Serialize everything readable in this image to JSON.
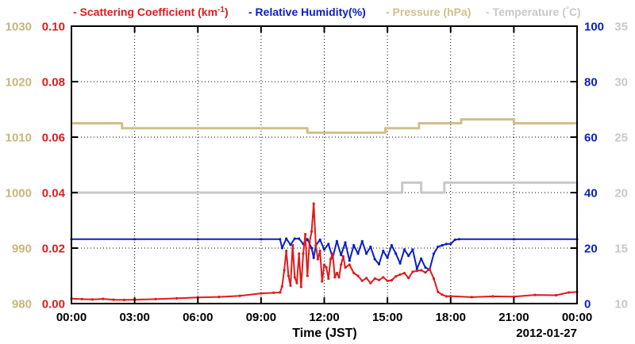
{
  "chart_data": {
    "type": "line",
    "legend": {
      "placement": "top",
      "items": [
        {
          "prefix": "- ",
          "text": "Scattering Coefficient (km",
          "sup": "-1",
          "close": ")",
          "color": "#e01b1b"
        },
        {
          "text": "- Relative Humidity(%)",
          "color": "#0b1fc6"
        },
        {
          "text": "- Pressure (hPa)",
          "color": "#cfc08a"
        },
        {
          "text": "- Temperature (",
          "sup": "°",
          "close": "C)",
          "color": "#c8c8c8"
        }
      ]
    },
    "xlabel": "Time (JST)",
    "date_label": "2012-01-27",
    "x_range_hours": [
      0,
      24
    ],
    "x_ticks": [
      "00:00",
      "03:00",
      "06:00",
      "09:00",
      "12:00",
      "15:00",
      "18:00",
      "21:00",
      "00:00"
    ],
    "grid": true,
    "axes": {
      "pressure": {
        "side": "left-outer",
        "color": "#c5b77c",
        "range": [
          980,
          1030
        ],
        "ticks": [
          "980",
          "990",
          "1000",
          "1010",
          "1020",
          "1030"
        ]
      },
      "scattering": {
        "side": "left-inner",
        "color": "#e01b1b",
        "range": [
          0,
          0.1
        ],
        "ticks": [
          "0.00",
          "0.02",
          "0.04",
          "0.06",
          "0.08",
          "0.10"
        ]
      },
      "humidity": {
        "side": "right-inner",
        "color": "#0b1fc6",
        "range": [
          0,
          100
        ],
        "ticks": [
          "0",
          "20",
          "40",
          "60",
          "80",
          "100"
        ]
      },
      "temperature": {
        "side": "right-outer",
        "color": "#c8c8c8",
        "range": [
          10,
          35
        ],
        "ticks": [
          "10",
          "15",
          "20",
          "25",
          "30",
          "35"
        ]
      }
    },
    "series": [
      {
        "name": "Pressure (hPa)",
        "axis": "pressure",
        "color": "#cfc08a",
        "step": true,
        "x": [
          0,
          2.4,
          5.5,
          9.0,
          10.2,
          11.2,
          14.9,
          16.5,
          17.8,
          18.5,
          20.0,
          21.0,
          23.0,
          24
        ],
        "y": [
          1012.5,
          1011.6,
          1011.6,
          1011.6,
          1011.6,
          1010.8,
          1011.6,
          1012.5,
          1012.5,
          1013.2,
          1013.2,
          1012.5,
          1012.5,
          1012.5
        ]
      },
      {
        "name": "Temperature (°C)",
        "axis": "temperature",
        "color": "#c8c8c8",
        "step": true,
        "x": [
          0,
          15.6,
          15.7,
          16.6,
          17.7,
          18.0,
          21.0,
          23.9,
          24
        ],
        "y": [
          20,
          20,
          20.9,
          20,
          20.9,
          20.9,
          20.9,
          20.9,
          20
        ]
      },
      {
        "name": "Relative Humidity(%)",
        "axis": "humidity",
        "color": "#0b1fc6",
        "step": false,
        "x": [
          0,
          3,
          6,
          9,
          9.9,
          10.0,
          10.2,
          10.4,
          10.6,
          10.8,
          11.0,
          11.2,
          11.4,
          11.5,
          11.6,
          11.8,
          12.0,
          12.2,
          12.4,
          12.6,
          12.8,
          13.0,
          13.2,
          13.4,
          13.6,
          13.8,
          14.0,
          14.2,
          14.4,
          14.6,
          14.8,
          15.0,
          15.2,
          15.4,
          15.6,
          15.8,
          16.0,
          16.2,
          16.4,
          16.6,
          16.8,
          17.0,
          17.2,
          17.4,
          17.6,
          17.8,
          18.0,
          18.2,
          18.4,
          21,
          24
        ],
        "y": [
          23.2,
          23.2,
          23.2,
          23.2,
          23.2,
          20.0,
          23.4,
          21.2,
          23.4,
          23.4,
          21.5,
          23.2,
          20.0,
          16.5,
          21.0,
          23.0,
          19.5,
          21.5,
          16.5,
          22.5,
          17.5,
          22.0,
          15.5,
          21.0,
          18.0,
          22.5,
          18.0,
          20.5,
          16.0,
          14.2,
          19.0,
          16.5,
          21.0,
          18.0,
          14.5,
          19.5,
          17.2,
          19.5,
          12.5,
          16.2,
          13.0,
          12.2,
          18.0,
          20.5,
          21.0,
          21.5,
          21.5,
          23.0,
          23.2,
          23.2,
          23.2
        ]
      },
      {
        "name": "Scattering Coefficient (km-1)",
        "axis": "scattering",
        "color": "#e01b1b",
        "step": false,
        "x": [
          0,
          0.5,
          1,
          1.5,
          2.0,
          2.5,
          3.0,
          4,
          5,
          6,
          7,
          8,
          9,
          9.6,
          9.9,
          10.0,
          10.1,
          10.2,
          10.3,
          10.4,
          10.5,
          10.6,
          10.7,
          10.8,
          10.9,
          11.0,
          11.1,
          11.2,
          11.3,
          11.4,
          11.5,
          11.6,
          11.7,
          11.8,
          11.9,
          12.0,
          12.1,
          12.2,
          12.3,
          12.4,
          12.5,
          12.6,
          12.7,
          12.8,
          12.9,
          13.0,
          13.2,
          13.4,
          13.6,
          13.8,
          14.0,
          14.2,
          14.4,
          14.6,
          14.8,
          15.0,
          15.2,
          15.4,
          15.6,
          15.8,
          16.0,
          16.2,
          16.4,
          16.6,
          16.8,
          17.0,
          17.2,
          17.4,
          17.6,
          17.8,
          18.0,
          19,
          20,
          21,
          22,
          23,
          23.6,
          24
        ],
        "y": [
          0.0018,
          0.0016,
          0.0015,
          0.0017,
          0.0014,
          0.0013,
          0.0014,
          0.0016,
          0.0019,
          0.0022,
          0.0024,
          0.0028,
          0.0037,
          0.0039,
          0.004,
          0.0062,
          0.012,
          0.019,
          0.01,
          0.0065,
          0.021,
          0.0095,
          0.0074,
          0.018,
          0.006,
          0.018,
          0.025,
          0.01,
          0.022,
          0.026,
          0.036,
          0.021,
          0.016,
          0.019,
          0.008,
          0.014,
          0.013,
          0.009,
          0.016,
          0.018,
          0.0095,
          0.011,
          0.0095,
          0.014,
          0.017,
          0.013,
          0.014,
          0.011,
          0.01,
          0.0082,
          0.0092,
          0.0074,
          0.009,
          0.0085,
          0.0095,
          0.0082,
          0.0084,
          0.0098,
          0.0105,
          0.011,
          0.0092,
          0.0115,
          0.0118,
          0.012,
          0.0112,
          0.0125,
          0.009,
          0.0042,
          0.0032,
          0.0026,
          0.0027,
          0.0023,
          0.0026,
          0.0025,
          0.0031,
          0.003,
          0.004,
          0.0042
        ]
      }
    ]
  }
}
